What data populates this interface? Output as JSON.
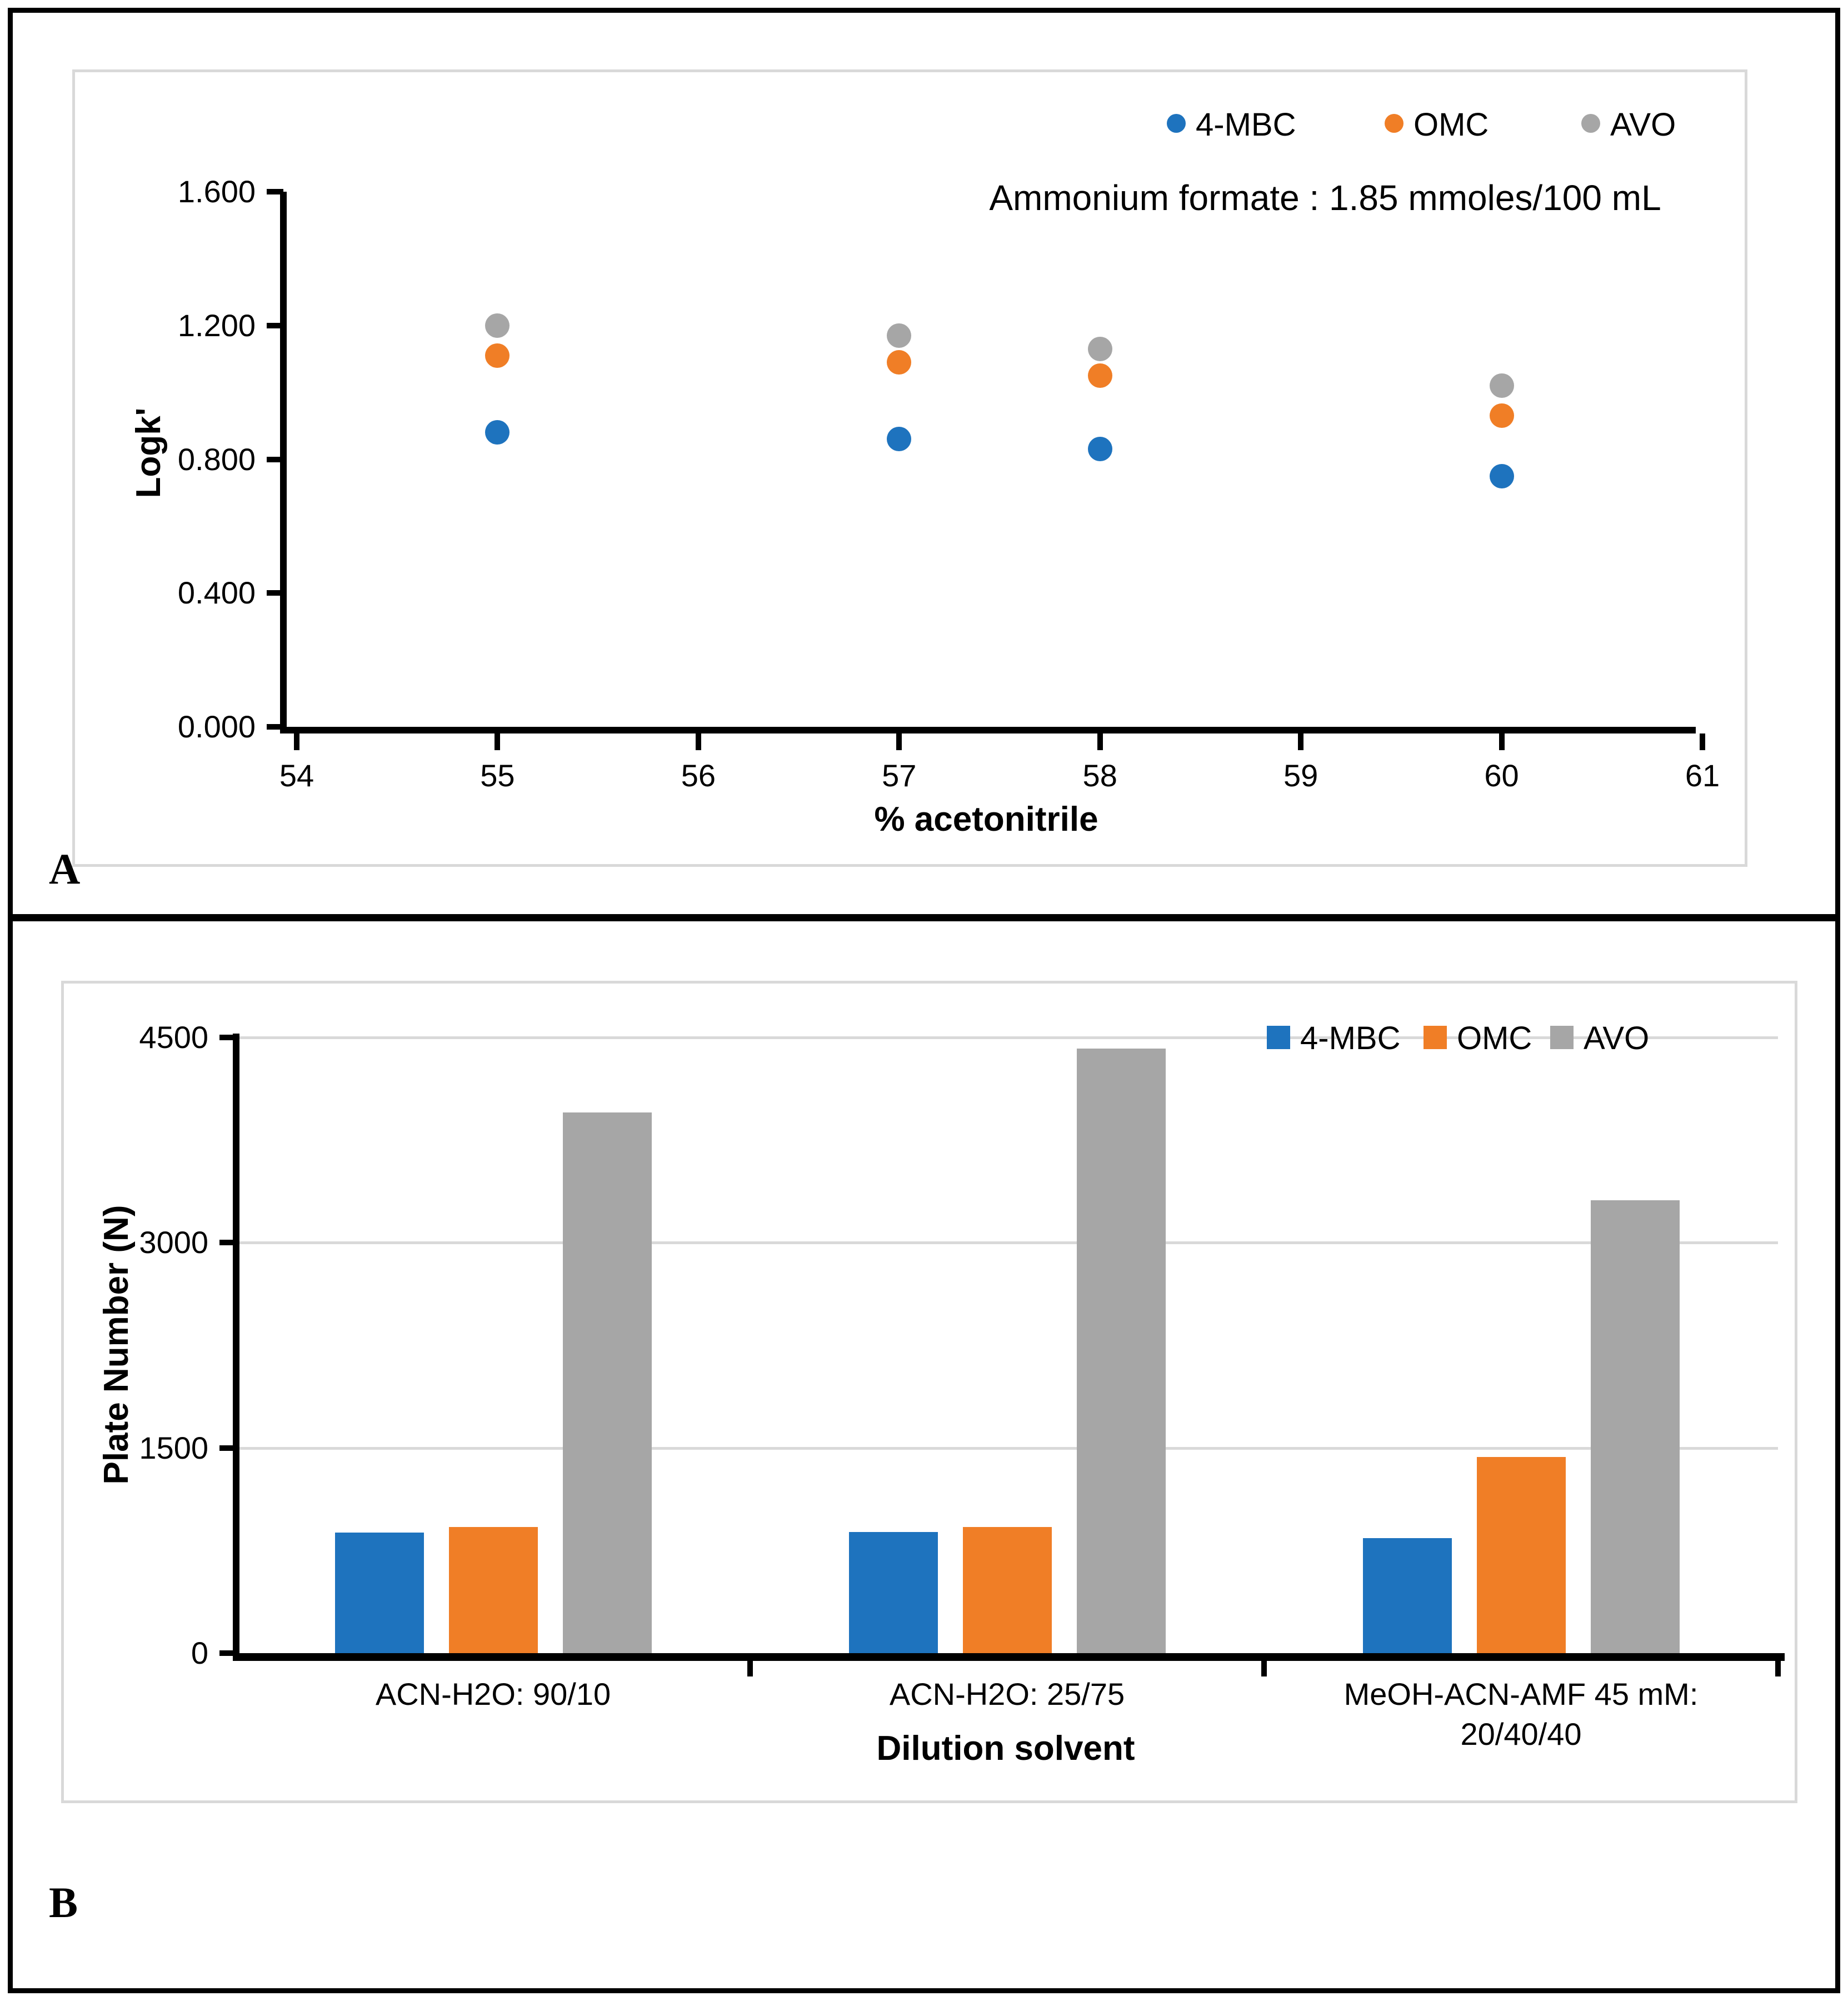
{
  "figure": {
    "panel_a_label": "A",
    "panel_b_label": "B"
  },
  "colors": {
    "series_4mbc": "#1E73BE",
    "series_omc": "#F07E26",
    "series_avo": "#A6A6A6",
    "gridline": "#D9D9D9",
    "axis": "#000000",
    "panel_border": "#D9D9D9"
  },
  "chart_data": [
    {
      "id": "panel-a",
      "type": "scatter",
      "title": "Ammonium formate : 1.85 mmoles/100 mL",
      "xlabel": "% acetonitrile",
      "ylabel": "Logk'",
      "xlim": [
        54,
        61
      ],
      "ylim": [
        0.0,
        1.6
      ],
      "x_ticks": [
        "54",
        "55",
        "56",
        "57",
        "58",
        "59",
        "60",
        "61"
      ],
      "x_tick_values": [
        54,
        55,
        56,
        57,
        58,
        59,
        60,
        61
      ],
      "y_ticks": [
        "0.000",
        "0.400",
        "0.800",
        "1.200",
        "1.600"
      ],
      "y_tick_values": [
        0,
        0.4,
        0.8,
        1.2,
        1.6
      ],
      "grid": false,
      "legend_position": "top-right",
      "x": [
        55,
        57,
        58,
        60
      ],
      "series": [
        {
          "name": "4-MBC",
          "color_key": "series_4mbc",
          "values": [
            0.88,
            0.86,
            0.83,
            0.75
          ]
        },
        {
          "name": "OMC",
          "color_key": "series_omc",
          "values": [
            1.11,
            1.09,
            1.05,
            0.93
          ]
        },
        {
          "name": "AVO",
          "color_key": "series_avo",
          "values": [
            1.2,
            1.17,
            1.13,
            1.02
          ]
        }
      ]
    },
    {
      "id": "panel-b",
      "type": "bar",
      "title": "",
      "xlabel": "Dilution solvent",
      "ylabel": "Plate Number (N)",
      "ylim": [
        0,
        4500
      ],
      "y_ticks": [
        "0",
        "1500",
        "3000",
        "4500"
      ],
      "y_tick_values": [
        0,
        1500,
        3000,
        4500
      ],
      "grid": true,
      "legend_position": "top-right",
      "categories": [
        "ACN-H2O: 90/10",
        "ACN-H2O: 25/75",
        "MeOH-ACN-AMF 45 mM: 20/40/40"
      ],
      "series": [
        {
          "name": "4-MBC",
          "color_key": "series_4mbc",
          "values": [
            880,
            885,
            840
          ]
        },
        {
          "name": "OMC",
          "color_key": "series_omc",
          "values": [
            920,
            920,
            1435
          ]
        },
        {
          "name": "AVO",
          "color_key": "series_avo",
          "values": [
            3950,
            4420,
            3310
          ]
        }
      ]
    }
  ]
}
